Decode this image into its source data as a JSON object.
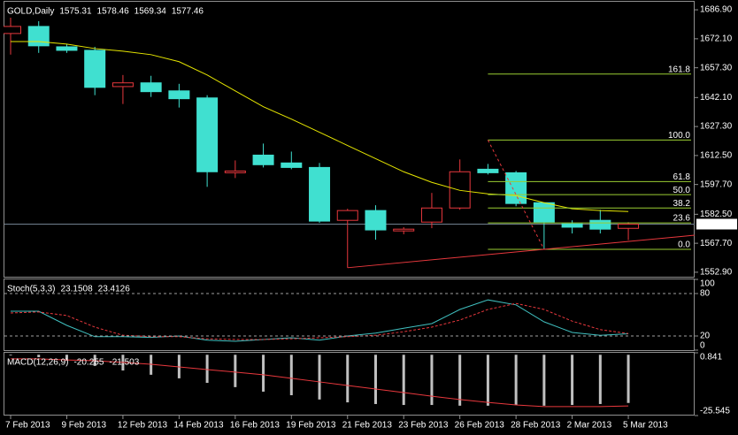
{
  "chart_data": [
    {
      "type": "candlestick",
      "title": "GOLD,Daily",
      "categories": [
        "7 Feb 2013",
        null,
        "9 Feb 2013",
        null,
        "12 Feb 2013",
        null,
        "14 Feb 2013",
        null,
        "16 Feb 2013",
        null,
        "19 Feb 2013",
        null,
        "21 Feb 2013",
        null,
        "23 Feb 2013",
        null,
        "26 Feb 2013",
        null,
        "28 Feb 2013",
        null,
        "2 Mar 2013",
        null,
        "5 Mar 2013"
      ],
      "open": [
        1674.8,
        1678.4,
        1668.0,
        1666.2,
        1647.7,
        1649.6,
        1645.5,
        1641.9,
        1603.7,
        1612.7,
        1608.7,
        1606.4,
        1579.4,
        1584.4,
        1574.0,
        1578.5,
        1585.7,
        1605.5,
        1603.7,
        1588.4,
        1577.6,
        1579.4,
        1575.31
      ],
      "high": [
        1682.9,
        1681.1,
        1669.4,
        1668.0,
        1653.6,
        1653.2,
        1649.1,
        1643.3,
        1610.0,
        1618.6,
        1614.5,
        1608.7,
        1585.3,
        1587.1,
        1575.9,
        1593.4,
        1610.5,
        1608.2,
        1604.6,
        1588.4,
        1579.4,
        1584.8,
        1578.46
      ],
      "low": [
        1664.0,
        1664.9,
        1664.9,
        1643.3,
        1638.8,
        1642.4,
        1637.0,
        1596.5,
        1601.0,
        1606.4,
        1605.5,
        1578.1,
        1555.2,
        1569.5,
        1572.3,
        1575.4,
        1584.8,
        1602.8,
        1586.6,
        1564.6,
        1572.7,
        1572.7,
        1569.34
      ],
      "close": [
        1678.4,
        1668.5,
        1666.2,
        1647.3,
        1649.6,
        1645.1,
        1641.5,
        1604.2,
        1604.6,
        1607.8,
        1606.4,
        1579.0,
        1584.4,
        1574.5,
        1574.9,
        1585.7,
        1604.2,
        1603.7,
        1588.0,
        1578.5,
        1575.9,
        1574.9,
        1577.46
      ],
      "up_color": "#e8383d",
      "down_color": "#40e0d0",
      "ma": {
        "color": "#e6e600",
        "values": [
          1670.7,
          1670.7,
          1669.4,
          1667.1,
          1665.8,
          1664.0,
          1660.4,
          1653.6,
          1645.5,
          1637.4,
          1631.1,
          1624.4,
          1617.6,
          1610.9,
          1604.2,
          1598.8,
          1594.7,
          1592.9,
          1592.0,
          1588.4,
          1585.3,
          1584.4,
          1583.9
        ]
      },
      "ylim": [
        1550.6,
        1691.0
      ],
      "yticks": [
        {
          "value": 1686.9,
          "label": "1686.90"
        },
        {
          "value": 1672.1,
          "label": "1672.10"
        },
        {
          "value": 1657.3,
          "label": "1657.30"
        },
        {
          "value": 1642.1,
          "label": "1642.10"
        },
        {
          "value": 1627.3,
          "label": "1627.30"
        },
        {
          "value": 1612.5,
          "label": "1612.50"
        },
        {
          "value": 1597.7,
          "label": "1597.70"
        },
        {
          "value": 1582.5,
          "label": "1582.50"
        },
        {
          "value": 1567.7,
          "label": "1567.70"
        },
        {
          "value": 1552.9,
          "label": "1552.90"
        }
      ],
      "fibonacci": {
        "x": [
          17,
          19
        ],
        "color": "#9acd32",
        "anchor_color": "#e8383d",
        "levels": [
          {
            "label": "161.8",
            "price": 1654.1
          },
          {
            "label": "100.0",
            "price": 1620.4
          },
          {
            "label": "61.8",
            "price": 1599.2
          },
          {
            "label": "50.0",
            "price": 1592.5
          },
          {
            "label": "38.2",
            "price": 1585.7
          },
          {
            "label": "23.6",
            "price": 1578.1
          },
          {
            "label": "0.0",
            "price": 1564.6
          }
        ]
      },
      "trendline": {
        "x": [
          12,
          24.36
        ],
        "y": [
          1555.2,
          1571.8
        ],
        "color": "#e8383d"
      }
    },
    {
      "type": "line",
      "title": "Stoch(5,3,3)",
      "series": [
        {
          "color": "#40c0c0",
          "dash": false,
          "values": [
            55,
            55,
            35,
            19,
            19,
            18,
            20,
            14,
            12.5,
            15,
            17.5,
            14,
            20,
            24,
            31,
            37.5,
            57.5,
            71,
            64,
            40,
            25,
            21,
            23.1508
          ]
        },
        {
          "color": "#e8383d",
          "dash": true,
          "values": [
            52.5,
            54,
            49,
            32.5,
            21,
            19,
            19,
            16,
            15,
            15,
            16,
            17.5,
            19,
            21,
            26,
            32.5,
            42.5,
            57.5,
            66,
            57.5,
            41,
            29,
            23.4126
          ]
        }
      ],
      "ylim": [
        0,
        100
      ],
      "yticks": [
        0,
        20,
        80,
        100
      ]
    },
    {
      "type": "macd",
      "title": "MACD(12,26,9)",
      "histogram": {
        "color": "#c0c0c0",
        "values": [
          -0.3,
          -1.0,
          -2.5,
          -4.7,
          -6.6,
          -8.4,
          -9.9,
          -11.8,
          -13.6,
          -15.5,
          -17.0,
          -18.8,
          -20.0,
          -20.7,
          -21.1,
          -21.1,
          -21.4,
          -21.4,
          -21.1,
          -21.4,
          -21.1,
          -20.7,
          -20.255
        ]
      },
      "signal": {
        "color": "#e8383d",
        "values": [
          -1.7,
          -1.7,
          -2.2,
          -2.5,
          -3.2,
          -4.0,
          -5.1,
          -6.2,
          -7.3,
          -8.4,
          -9.9,
          -11.4,
          -12.9,
          -14.4,
          -15.9,
          -17.4,
          -18.8,
          -20.0,
          -21.1,
          -21.8,
          -21.8,
          -21.8,
          -21.503
        ]
      },
      "ylim": [
        -25.545,
        0.841
      ],
      "yticks": [
        -25.545,
        0.841
      ]
    }
  ]
}
